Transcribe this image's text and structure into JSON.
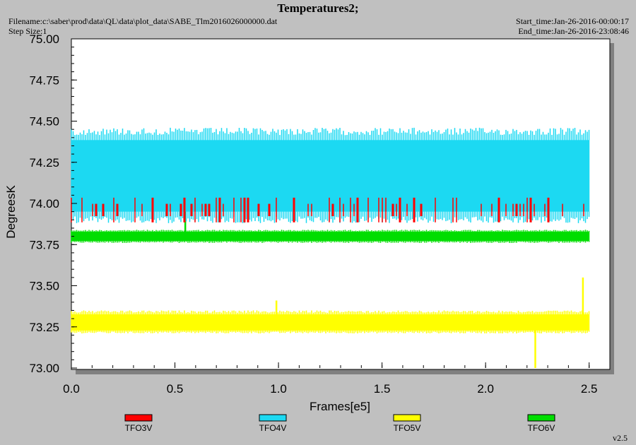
{
  "header": {
    "title": "Temperatures2;",
    "filename": "Filename:c:\\saber\\prod\\data\\QL\\data\\plot_data\\SABE_Tlm2016026000000.dat",
    "step_size": "Step Size:1",
    "start_time": "Start_time:Jan-26-2016-00:00:17",
    "end_time": "End_time:Jan-26-2016-23:08:46",
    "version": "v2.5"
  },
  "chart_data": {
    "type": "line",
    "title": "Temperatures2;",
    "xlabel": "Frames[e5]",
    "ylabel": "DegreesK",
    "xlim": [
      0.0,
      2.6
    ],
    "ylim": [
      73.0,
      75.0
    ],
    "x_ticks": [
      "0.0",
      "0.5",
      "1.0",
      "1.5",
      "2.0",
      "2.5"
    ],
    "y_ticks": [
      "73.00",
      "73.25",
      "73.50",
      "73.75",
      "74.00",
      "74.25",
      "74.50",
      "74.75",
      "75.00"
    ],
    "legend_position": "bottom",
    "series": [
      {
        "name": "TFO3V",
        "color": "#ff0000",
        "x_range": [
          0.0,
          2.5
        ],
        "y_min": 73.88,
        "y_max": 74.03,
        "y_base": 73.96
      },
      {
        "name": "TFO4V",
        "color": "#1cd9f2",
        "x_range": [
          0.0,
          2.5
        ],
        "y_min": 73.88,
        "y_max": 74.46,
        "y_base": 74.16
      },
      {
        "name": "TFO5V",
        "color": "#ffff00",
        "x_range": [
          0.0,
          2.5
        ],
        "y_min": 73.21,
        "y_max": 73.35,
        "y_base": 73.27,
        "spikes": [
          {
            "x": 0.99,
            "y": 73.41
          },
          {
            "x": 2.24,
            "y": 73.0
          },
          {
            "x": 2.47,
            "y": 73.55
          }
        ]
      },
      {
        "name": "TFO6V",
        "color": "#00dd00",
        "x_range": [
          0.0,
          2.5
        ],
        "y_min": 73.76,
        "y_max": 73.84,
        "y_base": 73.8,
        "spikes": [
          {
            "x": 0.55,
            "y": 74.11
          }
        ]
      }
    ]
  }
}
